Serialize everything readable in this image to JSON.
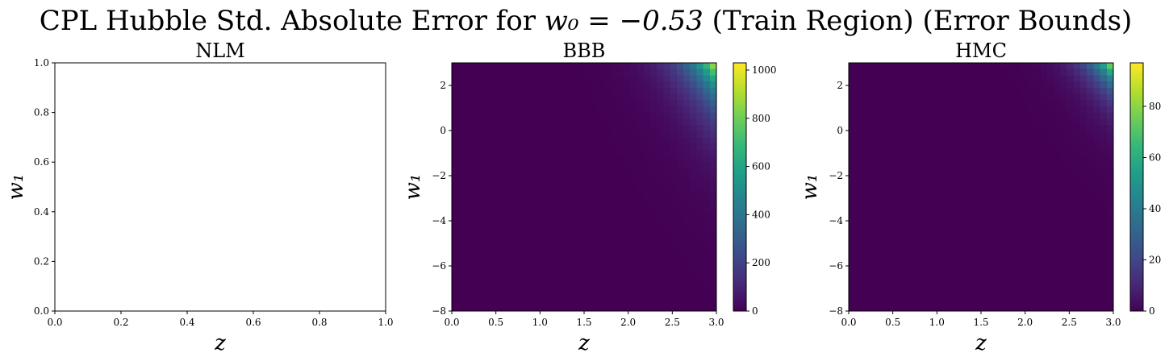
{
  "figure": {
    "title_prefix": "CPL Hubble Std. Absolute Error for ",
    "title_math": "w₀ = −0.53",
    "title_suffix": " (Train Region) (Error Bounds)"
  },
  "chart_data": [
    {
      "type": "heatmap",
      "title": "NLM",
      "xlabel": "z",
      "ylabel": "w₁",
      "xlim": [
        0,
        1
      ],
      "ylim": [
        0,
        1
      ],
      "xticks": [
        "0.0",
        "0.2",
        "0.4",
        "0.6",
        "0.8",
        "1.0"
      ],
      "yticks": [
        "0.0",
        "0.2",
        "0.4",
        "0.6",
        "0.8",
        "1.0"
      ],
      "empty": true,
      "colorbar": null
    },
    {
      "type": "heatmap",
      "title": "BBB",
      "xlabel": "z",
      "ylabel": "w₁",
      "xlim": [
        0,
        3
      ],
      "ylim": [
        -8,
        3
      ],
      "xticks": [
        "0.0",
        "0.5",
        "1.0",
        "1.5",
        "2.0",
        "2.5",
        "3.0"
      ],
      "yticks": [
        "−8",
        "−6",
        "−4",
        "−2",
        "0",
        "2"
      ],
      "colormap": "viridis",
      "value_range": [
        0,
        1030
      ],
      "max_location": "top-right",
      "grid_cells": [
        40,
        40
      ],
      "colorbar": {
        "ticks": [
          "0",
          "200",
          "400",
          "600",
          "800",
          "1000"
        ],
        "range": [
          0,
          1030
        ]
      }
    },
    {
      "type": "heatmap",
      "title": "HMC",
      "xlabel": "z",
      "ylabel": "w₁",
      "xlim": [
        0,
        3
      ],
      "ylim": [
        -8,
        3
      ],
      "xticks": [
        "0.0",
        "0.5",
        "1.0",
        "1.5",
        "2.0",
        "2.5",
        "3.0"
      ],
      "yticks": [
        "−8",
        "−6",
        "−4",
        "−2",
        "0",
        "2"
      ],
      "colormap": "viridis",
      "value_range": [
        0,
        97
      ],
      "max_location": "top-right",
      "grid_cells": [
        40,
        40
      ],
      "colorbar": {
        "ticks": [
          "0",
          "20",
          "40",
          "60",
          "80"
        ],
        "range": [
          0,
          97
        ]
      }
    }
  ]
}
